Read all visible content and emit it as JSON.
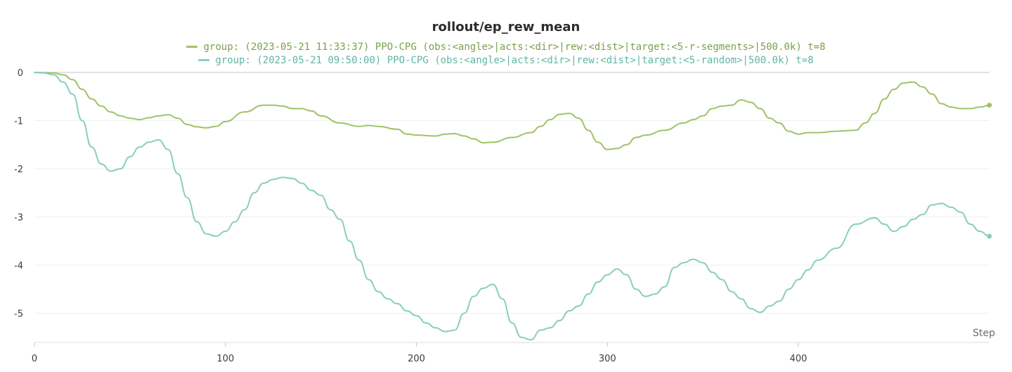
{
  "chart_data": {
    "type": "line",
    "title": "rollout/ep_rew_mean",
    "xlabel": "Step",
    "ylabel": "",
    "xlim": [
      0,
      500
    ],
    "ylim": [
      -5.6,
      0.05
    ],
    "x_ticks": [
      0,
      100,
      200,
      300,
      400
    ],
    "y_ticks": [
      0,
      -1,
      -2,
      -3,
      -4,
      -5
    ],
    "grid": "horizontal",
    "legend_position": "top-center",
    "series": [
      {
        "name": "group: (2023-05-21 11:33:37) PPO-CPG (obs:<angle>|acts:<dir>|rew:<dist>|target:<5-r-segments>|500.0k) t=8",
        "color": "#9fc364",
        "x": [
          0,
          10,
          15,
          20,
          25,
          30,
          35,
          40,
          45,
          50,
          55,
          60,
          65,
          70,
          75,
          80,
          85,
          90,
          95,
          100,
          110,
          120,
          125,
          130,
          135,
          140,
          145,
          150,
          160,
          170,
          175,
          180,
          190,
          195,
          200,
          210,
          215,
          220,
          225,
          230,
          235,
          240,
          250,
          260,
          265,
          270,
          275,
          280,
          285,
          290,
          295,
          300,
          305,
          310,
          315,
          320,
          330,
          340,
          345,
          350,
          355,
          360,
          365,
          370,
          375,
          380,
          385,
          390,
          395,
          400,
          405,
          410,
          420,
          430,
          435,
          440,
          445,
          450,
          455,
          460,
          465,
          470,
          475,
          480,
          485,
          490,
          495,
          500
        ],
        "values": [
          0,
          -0.01,
          -0.05,
          -0.15,
          -0.35,
          -0.55,
          -0.7,
          -0.82,
          -0.9,
          -0.95,
          -0.98,
          -0.94,
          -0.9,
          -0.88,
          -0.95,
          -1.08,
          -1.13,
          -1.15,
          -1.12,
          -1.02,
          -0.82,
          -0.68,
          -0.68,
          -0.7,
          -0.75,
          -0.75,
          -0.8,
          -0.9,
          -1.05,
          -1.12,
          -1.1,
          -1.12,
          -1.18,
          -1.28,
          -1.3,
          -1.32,
          -1.28,
          -1.27,
          -1.32,
          -1.38,
          -1.46,
          -1.45,
          -1.35,
          -1.25,
          -1.12,
          -0.98,
          -0.87,
          -0.85,
          -0.95,
          -1.2,
          -1.45,
          -1.6,
          -1.58,
          -1.5,
          -1.35,
          -1.3,
          -1.2,
          -1.05,
          -0.98,
          -0.9,
          -0.75,
          -0.7,
          -0.68,
          -0.57,
          -0.62,
          -0.75,
          -0.95,
          -1.05,
          -1.22,
          -1.28,
          -1.25,
          -1.25,
          -1.22,
          -1.2,
          -1.05,
          -0.85,
          -0.55,
          -0.35,
          -0.22,
          -0.2,
          -0.3,
          -0.45,
          -0.65,
          -0.72,
          -0.75,
          -0.75,
          -0.72,
          -0.68
        ]
      },
      {
        "name": "group: (2023-05-21 09:50:00) PPO-CPG (obs:<angle>|acts:<dir>|rew:<dist>|target:<5-random>|500.0k) t=8",
        "color": "#86cfbd",
        "x": [
          0,
          5,
          10,
          15,
          20,
          25,
          30,
          35,
          40,
          45,
          50,
          55,
          60,
          65,
          70,
          75,
          80,
          85,
          90,
          95,
          100,
          105,
          110,
          115,
          120,
          125,
          130,
          135,
          140,
          145,
          150,
          155,
          160,
          165,
          170,
          175,
          180,
          185,
          190,
          195,
          200,
          205,
          210,
          215,
          220,
          225,
          230,
          235,
          240,
          245,
          250,
          255,
          260,
          265,
          270,
          275,
          280,
          285,
          290,
          295,
          300,
          305,
          310,
          315,
          320,
          325,
          330,
          335,
          340,
          345,
          350,
          355,
          360,
          365,
          370,
          375,
          380,
          385,
          390,
          395,
          400,
          405,
          410,
          420,
          430,
          440,
          445,
          450,
          455,
          460,
          465,
          470,
          475,
          480,
          485,
          490,
          495,
          500
        ],
        "values": [
          0,
          -0.01,
          -0.05,
          -0.2,
          -0.45,
          -1.0,
          -1.55,
          -1.9,
          -2.05,
          -2.0,
          -1.75,
          -1.55,
          -1.45,
          -1.4,
          -1.6,
          -2.1,
          -2.6,
          -3.1,
          -3.35,
          -3.4,
          -3.3,
          -3.1,
          -2.85,
          -2.5,
          -2.3,
          -2.22,
          -2.18,
          -2.2,
          -2.3,
          -2.45,
          -2.55,
          -2.85,
          -3.05,
          -3.5,
          -3.9,
          -4.3,
          -4.55,
          -4.7,
          -4.8,
          -4.95,
          -5.05,
          -5.2,
          -5.3,
          -5.38,
          -5.35,
          -5.0,
          -4.65,
          -4.48,
          -4.4,
          -4.7,
          -5.2,
          -5.5,
          -5.55,
          -5.35,
          -5.3,
          -5.15,
          -4.95,
          -4.85,
          -4.6,
          -4.35,
          -4.2,
          -4.08,
          -4.2,
          -4.5,
          -4.65,
          -4.6,
          -4.45,
          -4.05,
          -3.95,
          -3.88,
          -3.95,
          -4.15,
          -4.3,
          -4.55,
          -4.7,
          -4.9,
          -4.98,
          -4.85,
          -4.75,
          -4.5,
          -4.3,
          -4.1,
          -3.9,
          -3.65,
          -3.15,
          -3.02,
          -3.15,
          -3.3,
          -3.2,
          -3.05,
          -2.95,
          -2.75,
          -2.72,
          -2.8,
          -2.9,
          -3.15,
          -3.3,
          -3.4
        ]
      }
    ]
  }
}
